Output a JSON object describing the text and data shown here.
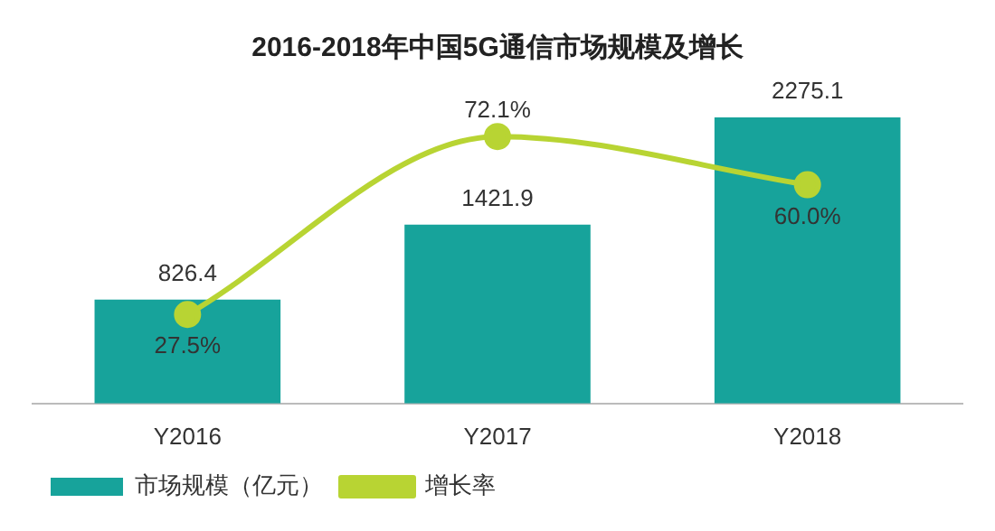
{
  "chart_data": {
    "type": "bar",
    "title": "2016-2018年中国5G通信市场规模及增长",
    "categories": [
      "Y2016",
      "Y2017",
      "Y2018"
    ],
    "series": [
      {
        "name": "市场规模（亿元）",
        "color": "#17a39b",
        "values": [
          826.4,
          1421.9,
          2275.1
        ],
        "value_labels": [
          "826.4",
          "1421.9",
          "2275.1"
        ]
      },
      {
        "name": "增长率",
        "type": "line",
        "axis": "y2",
        "color": "#b8d433",
        "values": [
          27.5,
          72.1,
          60.0
        ],
        "value_labels": [
          "27.5%",
          "72.1%",
          "60.0%"
        ],
        "marker": "circle"
      }
    ],
    "legend": "bottom",
    "grid": false
  }
}
